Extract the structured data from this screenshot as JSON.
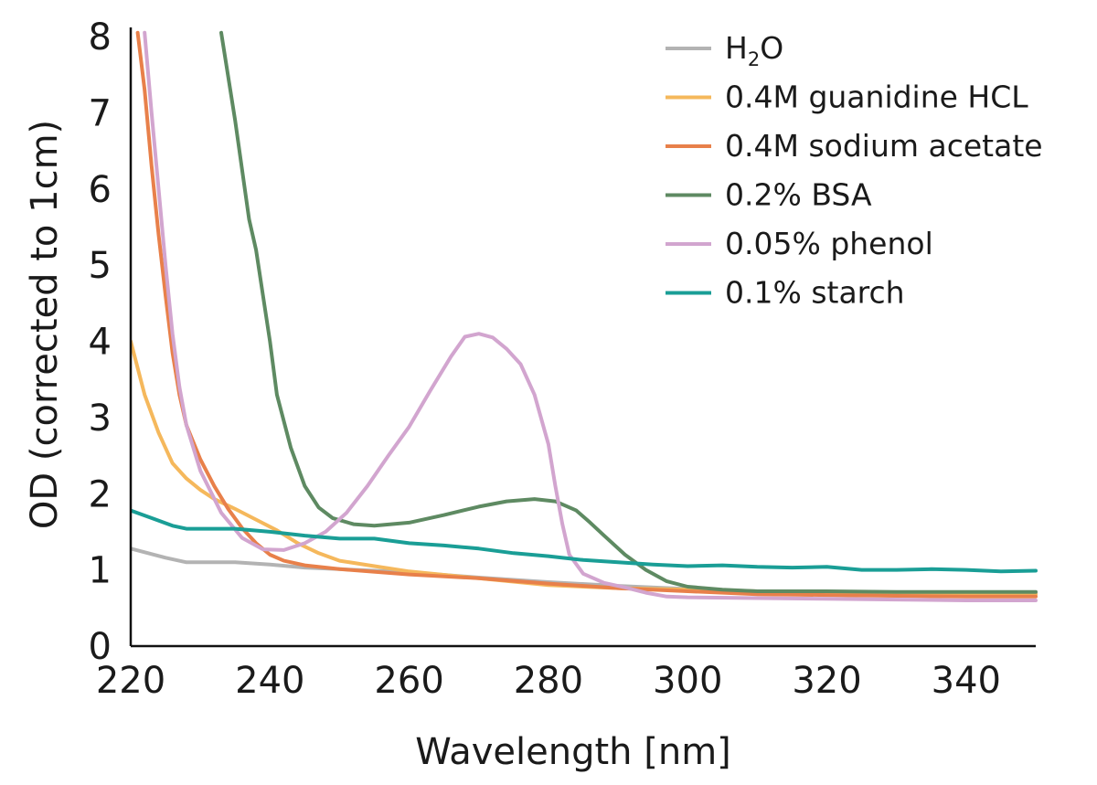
{
  "chart_data": {
    "type": "line",
    "title": "",
    "xlabel": "Wavelength [nm]",
    "ylabel": "OD (corrected to 1cm)",
    "xlim": [
      220,
      350
    ],
    "ylim": [
      0,
      8
    ],
    "xticks": [
      220,
      240,
      260,
      280,
      300,
      320,
      340
    ],
    "yticks": [
      0,
      1,
      2,
      3,
      4,
      5,
      6,
      7,
      8
    ],
    "grid": false,
    "legend_position": "top-right",
    "series": [
      {
        "name": "H2O",
        "label_main": "H",
        "label_sub": "2",
        "label_tail": "O",
        "color": "#b3b3b3",
        "points": [
          [
            220,
            1.28
          ],
          [
            225,
            1.16
          ],
          [
            228,
            1.1
          ],
          [
            235,
            1.1
          ],
          [
            240,
            1.07
          ],
          [
            245,
            1.03
          ],
          [
            250,
            1.01
          ],
          [
            260,
            0.97
          ],
          [
            270,
            0.9
          ],
          [
            280,
            0.84
          ],
          [
            290,
            0.79
          ],
          [
            300,
            0.75
          ],
          [
            310,
            0.72
          ],
          [
            320,
            0.71
          ],
          [
            330,
            0.7
          ],
          [
            340,
            0.69
          ],
          [
            350,
            0.69
          ]
        ]
      },
      {
        "name": "0.4M guanidine HCL",
        "color": "#f5b85c",
        "points": [
          [
            220,
            4.0
          ],
          [
            222,
            3.3
          ],
          [
            224,
            2.8
          ],
          [
            226,
            2.4
          ],
          [
            228,
            2.2
          ],
          [
            230,
            2.05
          ],
          [
            232,
            1.93
          ],
          [
            235,
            1.8
          ],
          [
            238,
            1.66
          ],
          [
            241,
            1.52
          ],
          [
            244,
            1.35
          ],
          [
            247,
            1.22
          ],
          [
            250,
            1.12
          ],
          [
            255,
            1.05
          ],
          [
            260,
            0.98
          ],
          [
            270,
            0.89
          ],
          [
            280,
            0.8
          ],
          [
            290,
            0.76
          ],
          [
            300,
            0.74
          ],
          [
            310,
            0.72
          ],
          [
            320,
            0.71
          ],
          [
            330,
            0.7
          ],
          [
            340,
            0.69
          ],
          [
            350,
            0.68
          ]
        ]
      },
      {
        "name": "0.4M sodium acetate",
        "color": "#e8804a",
        "points": [
          [
            221,
            8.05
          ],
          [
            222,
            7.3
          ],
          [
            223,
            6.3
          ],
          [
            224,
            5.4
          ],
          [
            225,
            4.6
          ],
          [
            226,
            3.85
          ],
          [
            227,
            3.3
          ],
          [
            228,
            2.9
          ],
          [
            230,
            2.45
          ],
          [
            232,
            2.1
          ],
          [
            234,
            1.8
          ],
          [
            236,
            1.55
          ],
          [
            238,
            1.35
          ],
          [
            240,
            1.2
          ],
          [
            242,
            1.12
          ],
          [
            245,
            1.06
          ],
          [
            250,
            1.01
          ],
          [
            260,
            0.94
          ],
          [
            270,
            0.89
          ],
          [
            280,
            0.82
          ],
          [
            290,
            0.76
          ],
          [
            300,
            0.72
          ],
          [
            310,
            0.68
          ],
          [
            320,
            0.67
          ],
          [
            330,
            0.66
          ],
          [
            340,
            0.65
          ],
          [
            350,
            0.65
          ]
        ]
      },
      {
        "name": "0.2% BSA",
        "color": "#5e8a62",
        "points": [
          [
            233,
            8.05
          ],
          [
            235,
            6.9
          ],
          [
            237,
            5.6
          ],
          [
            238,
            5.2
          ],
          [
            239,
            4.6
          ],
          [
            240,
            4.0
          ],
          [
            241,
            3.3
          ],
          [
            243,
            2.6
          ],
          [
            245,
            2.1
          ],
          [
            247,
            1.82
          ],
          [
            249,
            1.68
          ],
          [
            252,
            1.6
          ],
          [
            255,
            1.58
          ],
          [
            260,
            1.62
          ],
          [
            265,
            1.72
          ],
          [
            270,
            1.83
          ],
          [
            274,
            1.9
          ],
          [
            278,
            1.93
          ],
          [
            281,
            1.9
          ],
          [
            284,
            1.78
          ],
          [
            286,
            1.62
          ],
          [
            288,
            1.45
          ],
          [
            291,
            1.2
          ],
          [
            294,
            1.0
          ],
          [
            297,
            0.85
          ],
          [
            300,
            0.78
          ],
          [
            305,
            0.74
          ],
          [
            310,
            0.72
          ],
          [
            320,
            0.72
          ],
          [
            330,
            0.71
          ],
          [
            340,
            0.71
          ],
          [
            350,
            0.71
          ]
        ]
      },
      {
        "name": "0.05% phenol",
        "color": "#d2a5cf",
        "points": [
          [
            222,
            8.05
          ],
          [
            223,
            7.0
          ],
          [
            224,
            6.0
          ],
          [
            225,
            5.0
          ],
          [
            226,
            4.1
          ],
          [
            227,
            3.4
          ],
          [
            228,
            2.9
          ],
          [
            230,
            2.3
          ],
          [
            233,
            1.75
          ],
          [
            236,
            1.42
          ],
          [
            239,
            1.27
          ],
          [
            242,
            1.26
          ],
          [
            245,
            1.35
          ],
          [
            248,
            1.5
          ],
          [
            251,
            1.75
          ],
          [
            254,
            2.1
          ],
          [
            257,
            2.5
          ],
          [
            260,
            2.88
          ],
          [
            263,
            3.35
          ],
          [
            266,
            3.8
          ],
          [
            268,
            4.06
          ],
          [
            270,
            4.1
          ],
          [
            272,
            4.05
          ],
          [
            274,
            3.9
          ],
          [
            276,
            3.7
          ],
          [
            278,
            3.3
          ],
          [
            280,
            2.65
          ],
          [
            281,
            2.1
          ],
          [
            282,
            1.6
          ],
          [
            283,
            1.2
          ],
          [
            285,
            0.95
          ],
          [
            288,
            0.83
          ],
          [
            291,
            0.77
          ],
          [
            294,
            0.7
          ],
          [
            297,
            0.65
          ],
          [
            300,
            0.64
          ],
          [
            310,
            0.63
          ],
          [
            320,
            0.62
          ],
          [
            330,
            0.61
          ],
          [
            340,
            0.6
          ],
          [
            350,
            0.6
          ]
        ]
      },
      {
        "name": "0.1% starch",
        "color": "#1a9e96",
        "points": [
          [
            220,
            1.78
          ],
          [
            223,
            1.68
          ],
          [
            226,
            1.58
          ],
          [
            228,
            1.54
          ],
          [
            235,
            1.54
          ],
          [
            240,
            1.5
          ],
          [
            245,
            1.45
          ],
          [
            250,
            1.41
          ],
          [
            255,
            1.41
          ],
          [
            260,
            1.35
          ],
          [
            265,
            1.32
          ],
          [
            270,
            1.28
          ],
          [
            275,
            1.22
          ],
          [
            280,
            1.18
          ],
          [
            285,
            1.13
          ],
          [
            290,
            1.1
          ],
          [
            295,
            1.07
          ],
          [
            300,
            1.05
          ],
          [
            305,
            1.06
          ],
          [
            310,
            1.04
          ],
          [
            315,
            1.03
          ],
          [
            320,
            1.04
          ],
          [
            325,
            1.0
          ],
          [
            330,
            1.0
          ],
          [
            335,
            1.01
          ],
          [
            340,
            1.0
          ],
          [
            345,
            0.98
          ],
          [
            350,
            0.99
          ]
        ]
      }
    ]
  }
}
